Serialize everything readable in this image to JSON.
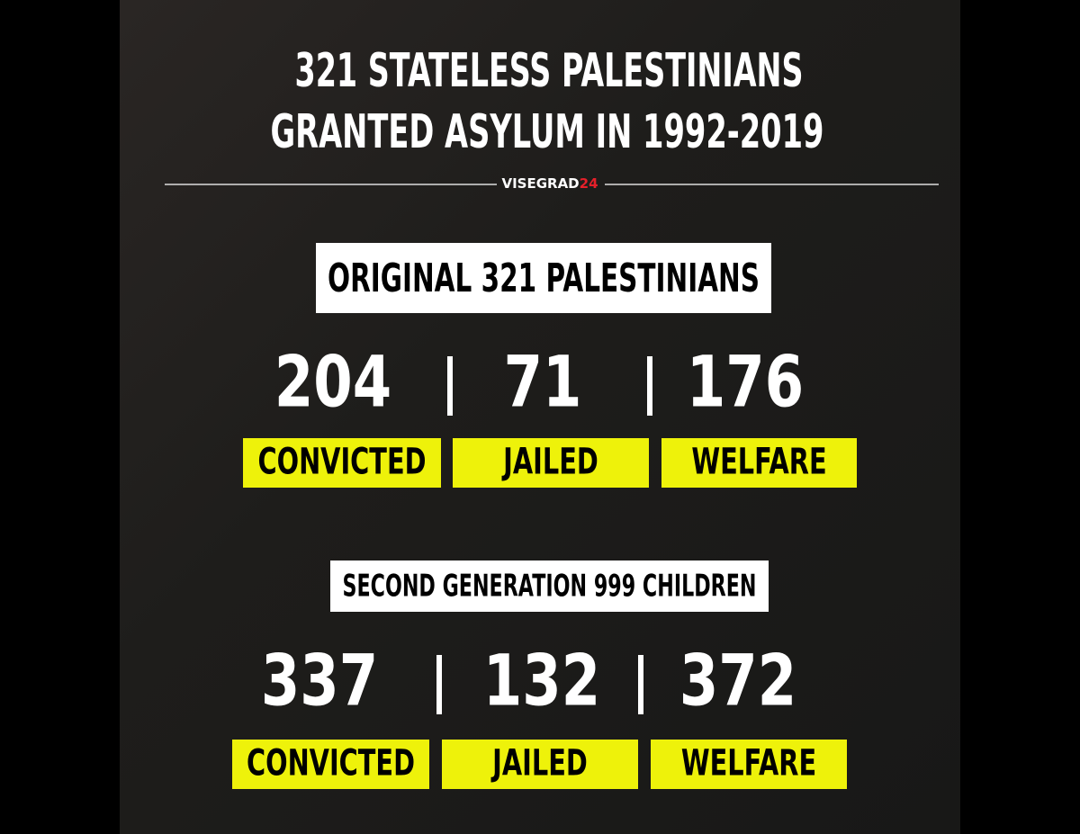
{
  "header": {
    "title_lines": [
      "321 STATELESS PALESTINIANS",
      "GRANTED ASYLUM IN 1992-2019"
    ],
    "brand": {
      "name": "VISEGRAD",
      "suffix": "24"
    }
  },
  "sections": [
    {
      "label": "ORIGINAL 321 PALESTINIANS",
      "stats": [
        {
          "value": "204",
          "label": "CONVICTED"
        },
        {
          "value": "71",
          "label": "JAILED"
        },
        {
          "value": "176",
          "label": "WELFARE"
        }
      ]
    },
    {
      "label": "SECOND GENERATION 999 CHILDREN",
      "stats": [
        {
          "value": "337",
          "label": "CONVICTED"
        },
        {
          "value": "132",
          "label": "JAILED"
        },
        {
          "value": "372",
          "label": "WELFARE"
        }
      ]
    }
  ]
}
